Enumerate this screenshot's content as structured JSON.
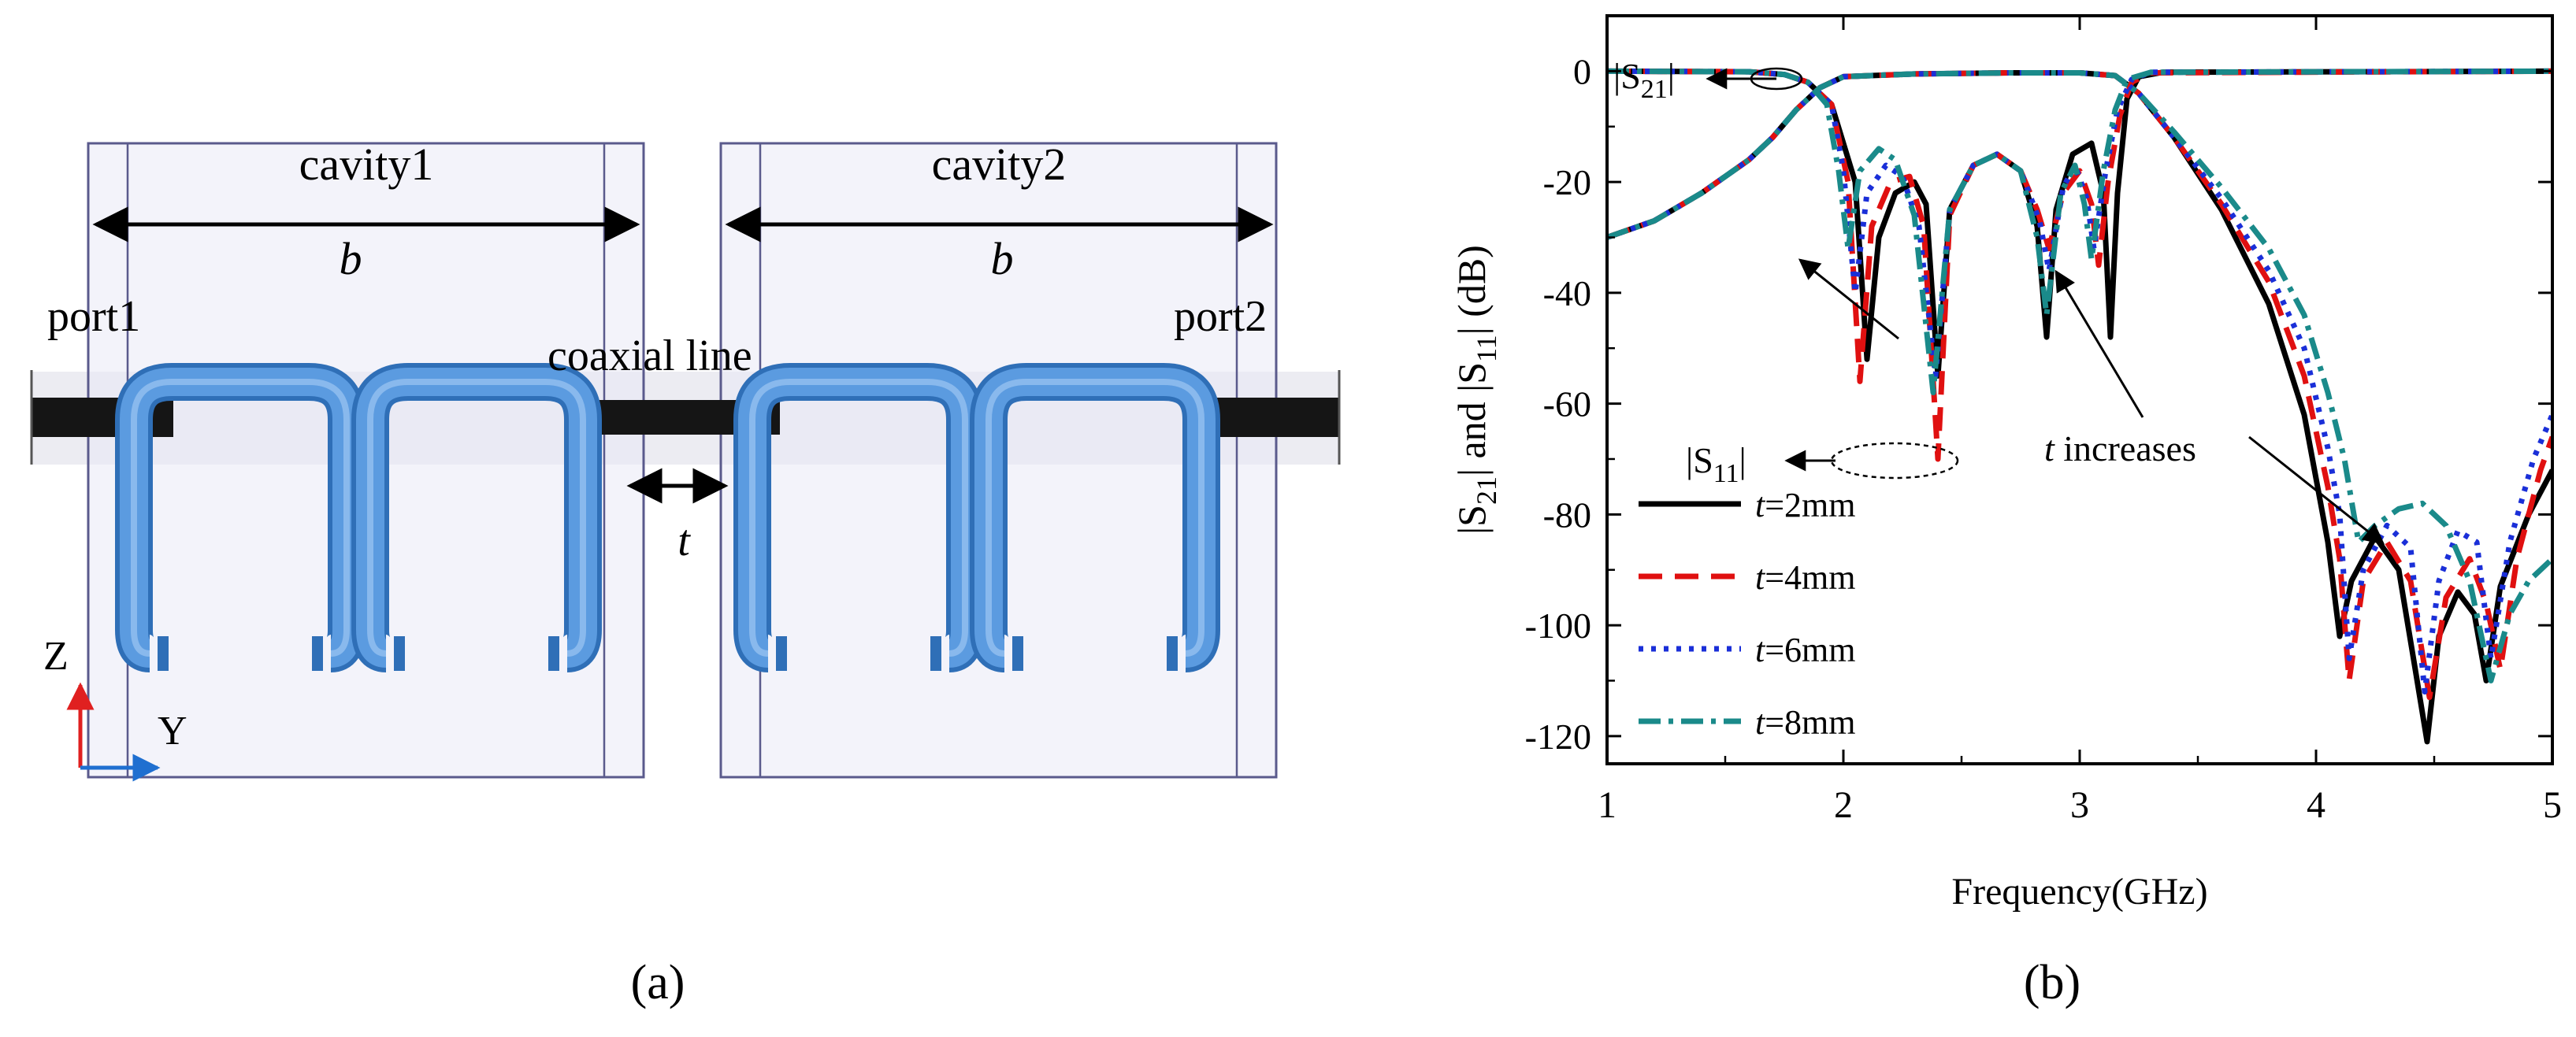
{
  "panel_a": {
    "caption": "(a)",
    "cavity1_label": "cavity1",
    "cavity2_label": "cavity2",
    "b_label_1": "b",
    "b_label_2": "b",
    "port1_label": "port1",
    "port2_label": "port2",
    "coax_label": "coaxial line",
    "t_label": "t",
    "axis_z_label": "Z",
    "axis_y_label": "Y",
    "colors": {
      "cavity_fill": "#e9e9f5",
      "cavity_stroke": "#5a5a8c",
      "resonator": "#4b90d9",
      "resonator_dark": "#2f6fb7",
      "coax": "#1a1a1a",
      "axis_z": "#e02020",
      "axis_y": "#1f6fd0"
    }
  },
  "panel_b": {
    "caption": "(b)",
    "annotations": {
      "s21_pre": "|S",
      "s21_sub": "21",
      "s21_post": "|",
      "s11_pre": "|S",
      "s11_sub": "11",
      "s11_post": "|",
      "t_italic": "t",
      "t_rest": " increases"
    },
    "ylabel_parts": {
      "p1": "|S",
      "s1": "21",
      "p2": "| and |S",
      "s2": "11",
      "p3": "|  (dB)"
    },
    "legend_t": "t",
    "legend_labels": [
      "=2mm",
      "=4mm",
      "=6mm",
      "=8mm"
    ]
  },
  "chart_data": {
    "type": "line",
    "xlabel": "Frequency(GHz)",
    "ylabel": "|S21| and |S11| (dB)",
    "xlim": [
      1,
      5
    ],
    "ylim": [
      -125,
      10
    ],
    "xticks": [
      1,
      2,
      3,
      4,
      5
    ],
    "yticks": [
      0,
      -20,
      -40,
      -60,
      -80,
      -100,
      -120
    ],
    "grid": false,
    "legend_position": "bottom-left",
    "series": [
      {
        "name": "t=2mm",
        "color": "#000000",
        "dash": "none",
        "s21": [
          [
            1,
            -30
          ],
          [
            1.2,
            -27
          ],
          [
            1.4,
            -22
          ],
          [
            1.6,
            -16
          ],
          [
            1.7,
            -12
          ],
          [
            1.8,
            -7
          ],
          [
            1.9,
            -3
          ],
          [
            2.0,
            -1
          ],
          [
            2.3,
            -0.5
          ],
          [
            2.7,
            -0.3
          ],
          [
            3.0,
            -0.3
          ],
          [
            3.15,
            -0.8
          ],
          [
            3.25,
            -4
          ],
          [
            3.4,
            -12
          ],
          [
            3.6,
            -25
          ],
          [
            3.8,
            -42
          ],
          [
            3.95,
            -62
          ],
          [
            4.05,
            -85
          ],
          [
            4.1,
            -102
          ],
          [
            4.15,
            -92
          ],
          [
            4.25,
            -84
          ],
          [
            4.35,
            -90
          ],
          [
            4.42,
            -108
          ],
          [
            4.47,
            -121
          ],
          [
            4.52,
            -102
          ],
          [
            4.6,
            -94
          ],
          [
            4.67,
            -98
          ],
          [
            4.72,
            -110
          ],
          [
            4.78,
            -93
          ],
          [
            4.9,
            -80
          ],
          [
            5.0,
            -72
          ]
        ],
        "s11": [
          [
            1,
            0
          ],
          [
            1.6,
            -0.1
          ],
          [
            1.75,
            -0.6
          ],
          [
            1.85,
            -2
          ],
          [
            1.95,
            -6
          ],
          [
            2.05,
            -20
          ],
          [
            2.1,
            -52
          ],
          [
            2.15,
            -30
          ],
          [
            2.22,
            -22
          ],
          [
            2.3,
            -20
          ],
          [
            2.35,
            -24
          ],
          [
            2.4,
            -55
          ],
          [
            2.45,
            -25
          ],
          [
            2.55,
            -17
          ],
          [
            2.65,
            -15
          ],
          [
            2.75,
            -18
          ],
          [
            2.82,
            -28
          ],
          [
            2.86,
            -48
          ],
          [
            2.9,
            -25
          ],
          [
            2.97,
            -15
          ],
          [
            3.05,
            -13
          ],
          [
            3.1,
            -22
          ],
          [
            3.13,
            -48
          ],
          [
            3.16,
            -22
          ],
          [
            3.2,
            -5
          ],
          [
            3.25,
            -1
          ],
          [
            3.35,
            -0.2
          ],
          [
            5,
            0
          ]
        ]
      },
      {
        "name": "t=4mm",
        "color": "#e01010",
        "dash": "30 16",
        "s21": [
          [
            1,
            -30
          ],
          [
            1.2,
            -27
          ],
          [
            1.4,
            -22
          ],
          [
            1.6,
            -16
          ],
          [
            1.7,
            -12
          ],
          [
            1.8,
            -7
          ],
          [
            1.9,
            -3
          ],
          [
            2.0,
            -1
          ],
          [
            2.3,
            -0.5
          ],
          [
            2.7,
            -0.3
          ],
          [
            3.0,
            -0.3
          ],
          [
            3.15,
            -0.8
          ],
          [
            3.25,
            -4
          ],
          [
            3.4,
            -12
          ],
          [
            3.6,
            -24
          ],
          [
            3.8,
            -38
          ],
          [
            3.95,
            -55
          ],
          [
            4.05,
            -75
          ],
          [
            4.1,
            -88
          ],
          [
            4.14,
            -110
          ],
          [
            4.2,
            -92
          ],
          [
            4.3,
            -85
          ],
          [
            4.4,
            -92
          ],
          [
            4.48,
            -113
          ],
          [
            4.55,
            -95
          ],
          [
            4.65,
            -88
          ],
          [
            4.72,
            -96
          ],
          [
            4.78,
            -108
          ],
          [
            4.85,
            -88
          ],
          [
            4.95,
            -72
          ],
          [
            5.0,
            -66
          ]
        ],
        "s11": [
          [
            1,
            0
          ],
          [
            1.6,
            -0.1
          ],
          [
            1.75,
            -0.6
          ],
          [
            1.85,
            -2
          ],
          [
            1.95,
            -6
          ],
          [
            2.02,
            -20
          ],
          [
            2.07,
            -56
          ],
          [
            2.12,
            -28
          ],
          [
            2.2,
            -20
          ],
          [
            2.28,
            -19
          ],
          [
            2.34,
            -28
          ],
          [
            2.4,
            -70
          ],
          [
            2.45,
            -26
          ],
          [
            2.55,
            -17
          ],
          [
            2.65,
            -15
          ],
          [
            2.75,
            -18
          ],
          [
            2.82,
            -25
          ],
          [
            2.87,
            -32
          ],
          [
            2.93,
            -22
          ],
          [
            3.0,
            -18
          ],
          [
            3.05,
            -24
          ],
          [
            3.08,
            -35
          ],
          [
            3.12,
            -20
          ],
          [
            3.17,
            -8
          ],
          [
            3.22,
            -2
          ],
          [
            3.3,
            -0.3
          ],
          [
            5,
            0
          ]
        ]
      },
      {
        "name": "t=6mm",
        "color": "#1a2fd8",
        "dash": "6 10",
        "s21": [
          [
            1,
            -30
          ],
          [
            1.2,
            -27
          ],
          [
            1.4,
            -22
          ],
          [
            1.6,
            -16
          ],
          [
            1.7,
            -12
          ],
          [
            1.8,
            -7
          ],
          [
            1.9,
            -3
          ],
          [
            2.0,
            -1
          ],
          [
            2.3,
            -0.5
          ],
          [
            2.7,
            -0.3
          ],
          [
            3.0,
            -0.3
          ],
          [
            3.15,
            -0.8
          ],
          [
            3.25,
            -4
          ],
          [
            3.4,
            -12
          ],
          [
            3.6,
            -23
          ],
          [
            3.8,
            -36
          ],
          [
            3.95,
            -50
          ],
          [
            4.05,
            -68
          ],
          [
            4.1,
            -80
          ],
          [
            4.14,
            -106
          ],
          [
            4.2,
            -90
          ],
          [
            4.3,
            -82
          ],
          [
            4.4,
            -86
          ],
          [
            4.46,
            -112
          ],
          [
            4.52,
            -92
          ],
          [
            4.6,
            -83
          ],
          [
            4.68,
            -85
          ],
          [
            4.74,
            -106
          ],
          [
            4.82,
            -85
          ],
          [
            4.92,
            -70
          ],
          [
            5.0,
            -62
          ]
        ],
        "s11": [
          [
            1,
            0
          ],
          [
            1.6,
            -0.1
          ],
          [
            1.75,
            -0.6
          ],
          [
            1.85,
            -2
          ],
          [
            1.95,
            -6
          ],
          [
            2.0,
            -18
          ],
          [
            2.05,
            -40
          ],
          [
            2.1,
            -22
          ],
          [
            2.18,
            -17
          ],
          [
            2.25,
            -19
          ],
          [
            2.32,
            -28
          ],
          [
            2.39,
            -55
          ],
          [
            2.45,
            -25
          ],
          [
            2.55,
            -17
          ],
          [
            2.65,
            -15
          ],
          [
            2.75,
            -18
          ],
          [
            2.83,
            -27
          ],
          [
            2.87,
            -36
          ],
          [
            2.93,
            -21
          ],
          [
            2.98,
            -17
          ],
          [
            3.03,
            -23
          ],
          [
            3.06,
            -32
          ],
          [
            3.11,
            -18
          ],
          [
            3.16,
            -7
          ],
          [
            3.22,
            -1.5
          ],
          [
            3.3,
            -0.2
          ],
          [
            5,
            0
          ]
        ]
      },
      {
        "name": "t=8mm",
        "color": "#1a8a8a",
        "dash": "28 10 6 10",
        "s21": [
          [
            1,
            -30
          ],
          [
            1.2,
            -27
          ],
          [
            1.4,
            -22
          ],
          [
            1.6,
            -16
          ],
          [
            1.7,
            -12
          ],
          [
            1.8,
            -7
          ],
          [
            1.9,
            -3
          ],
          [
            2.0,
            -1
          ],
          [
            2.3,
            -0.5
          ],
          [
            2.7,
            -0.3
          ],
          [
            3.0,
            -0.3
          ],
          [
            3.15,
            -0.8
          ],
          [
            3.25,
            -4
          ],
          [
            3.4,
            -11
          ],
          [
            3.6,
            -21
          ],
          [
            3.8,
            -32
          ],
          [
            3.95,
            -44
          ],
          [
            4.05,
            -58
          ],
          [
            4.12,
            -70
          ],
          [
            4.18,
            -85
          ],
          [
            4.25,
            -82
          ],
          [
            4.35,
            -79
          ],
          [
            4.45,
            -78
          ],
          [
            4.55,
            -82
          ],
          [
            4.65,
            -92
          ],
          [
            4.74,
            -110
          ],
          [
            4.82,
            -98
          ],
          [
            4.9,
            -92
          ],
          [
            5.0,
            -88
          ]
        ],
        "s11": [
          [
            1,
            0
          ],
          [
            1.6,
            -0.1
          ],
          [
            1.75,
            -0.6
          ],
          [
            1.85,
            -2
          ],
          [
            1.93,
            -6
          ],
          [
            1.98,
            -18
          ],
          [
            2.02,
            -32
          ],
          [
            2.07,
            -18
          ],
          [
            2.15,
            -14
          ],
          [
            2.22,
            -16
          ],
          [
            2.3,
            -26
          ],
          [
            2.38,
            -58
          ],
          [
            2.45,
            -25
          ],
          [
            2.55,
            -17
          ],
          [
            2.65,
            -15
          ],
          [
            2.75,
            -18
          ],
          [
            2.82,
            -30
          ],
          [
            2.86,
            -44
          ],
          [
            2.92,
            -22
          ],
          [
            2.98,
            -17
          ],
          [
            3.02,
            -24
          ],
          [
            3.05,
            -34
          ],
          [
            3.1,
            -18
          ],
          [
            3.15,
            -7
          ],
          [
            3.2,
            -1.5
          ],
          [
            3.3,
            -0.2
          ],
          [
            5,
            0
          ]
        ]
      }
    ]
  }
}
